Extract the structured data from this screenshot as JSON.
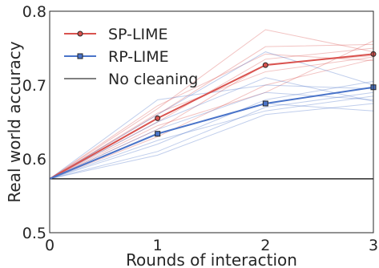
{
  "chart_data": {
    "type": "line",
    "title": "",
    "xlabel": "Rounds of interaction",
    "ylabel": "Real world accuracy",
    "xlim": [
      0,
      3
    ],
    "ylim": [
      0.5,
      0.8
    ],
    "x_ticks": [
      "0",
      "1",
      "2",
      "3"
    ],
    "y_ticks": [
      "0.5",
      "0.6",
      "0.7",
      "0.8"
    ],
    "grid": false,
    "legend_position": "top-left",
    "x": [
      0,
      1,
      2,
      3
    ],
    "series": [
      {
        "name": "SP-LIME",
        "values": [
          0.573,
          0.655,
          0.727,
          0.742
        ],
        "color": "#d9534f",
        "marker": "circle"
      },
      {
        "name": "RP-LIME",
        "values": [
          0.573,
          0.634,
          0.675,
          0.697
        ],
        "color": "#4a74c9",
        "marker": "square"
      }
    ],
    "baseline": {
      "name": "No cleaning",
      "value": 0.573,
      "color": "#000000"
    },
    "sp_lime_runs": [
      [
        0.573,
        0.668,
        0.775,
        0.745
      ],
      [
        0.573,
        0.66,
        0.752,
        0.755
      ],
      [
        0.573,
        0.65,
        0.735,
        0.75
      ],
      [
        0.573,
        0.64,
        0.728,
        0.74
      ],
      [
        0.573,
        0.662,
        0.718,
        0.738
      ],
      [
        0.573,
        0.63,
        0.7,
        0.735
      ],
      [
        0.573,
        0.645,
        0.69,
        0.76
      ],
      [
        0.573,
        0.672,
        0.742,
        0.733
      ]
    ],
    "rp_lime_runs": [
      [
        0.573,
        0.68,
        0.7,
        0.695
      ],
      [
        0.573,
        0.66,
        0.745,
        0.7
      ],
      [
        0.573,
        0.64,
        0.69,
        0.68
      ],
      [
        0.573,
        0.62,
        0.68,
        0.705
      ],
      [
        0.573,
        0.61,
        0.67,
        0.69
      ],
      [
        0.573,
        0.605,
        0.66,
        0.675
      ],
      [
        0.573,
        0.625,
        0.665,
        0.685
      ],
      [
        0.573,
        0.65,
        0.71,
        0.678
      ],
      [
        0.573,
        0.635,
        0.675,
        0.665
      ]
    ]
  }
}
